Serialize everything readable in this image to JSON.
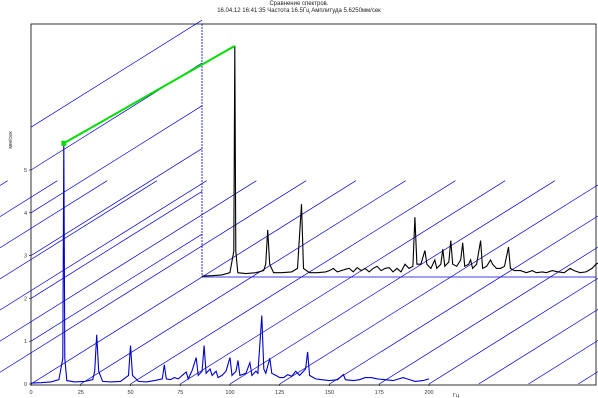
{
  "window": {
    "title_line1": "Сравнение спектров.",
    "title_line2": "16.04.12 16:41:35 Частота 16.5Гц Амплитуда 5.6250мм/сек"
  },
  "chart_data": {
    "type": "line",
    "title": "Сравнение спектров.",
    "subtitle": "16.04.12 16:41:35 Частота 16.5Гц Амплитуда 5.6250мм/сек",
    "xlabel": "Гц",
    "ylabel": "мм/сек",
    "x_ticks": [
      "0",
      "25",
      "50",
      "75",
      "100",
      "125",
      "150",
      "175",
      "200"
    ],
    "y_ticks": [
      "0",
      "1",
      "2",
      "3",
      "4",
      "5"
    ],
    "xlim": [
      0,
      200
    ],
    "ylim": [
      0,
      5.6
    ],
    "waterfall": true,
    "grid": true,
    "marker": {
      "x": 16.5,
      "y": 5.625,
      "color": "#00dd00"
    },
    "series": [
      {
        "color": "#0000cc",
        "points": [
          [
            0,
            0.02
          ],
          [
            5,
            0.03
          ],
          [
            10,
            0.05
          ],
          [
            14,
            0.1
          ],
          [
            16,
            0.6
          ],
          [
            16.5,
            5.625
          ],
          [
            17,
            0.6
          ],
          [
            18,
            0.08
          ],
          [
            22,
            0.05
          ],
          [
            27,
            0.06
          ],
          [
            31,
            0.1
          ],
          [
            32,
            0.3
          ],
          [
            33,
            1.15
          ],
          [
            34,
            0.3
          ],
          [
            36,
            0.06
          ],
          [
            40,
            0.05
          ],
          [
            45,
            0.06
          ],
          [
            49,
            0.2
          ],
          [
            50,
            0.9
          ],
          [
            51,
            0.2
          ],
          [
            54,
            0.06
          ],
          [
            58,
            0.05
          ],
          [
            62,
            0.08
          ],
          [
            66,
            0.12
          ],
          [
            67,
            0.45
          ],
          [
            68,
            0.12
          ],
          [
            70,
            0.1
          ],
          [
            72,
            0.15
          ],
          [
            74,
            0.12
          ],
          [
            76,
            0.2
          ],
          [
            78,
            0.28
          ],
          [
            79,
            0.12
          ],
          [
            81,
            0.32
          ],
          [
            83,
            0.62
          ],
          [
            84,
            0.2
          ],
          [
            86,
            0.3
          ],
          [
            87,
            0.9
          ],
          [
            88,
            0.25
          ],
          [
            90,
            0.35
          ],
          [
            91,
            0.2
          ],
          [
            93,
            0.3
          ],
          [
            94,
            0.15
          ],
          [
            96,
            0.2
          ],
          [
            98,
            0.3
          ],
          [
            100,
            0.62
          ],
          [
            101,
            0.2
          ],
          [
            103,
            0.3
          ],
          [
            104,
            0.55
          ],
          [
            105,
            0.2
          ],
          [
            108,
            0.25
          ],
          [
            110,
            0.5
          ],
          [
            111,
            0.2
          ],
          [
            113,
            0.3
          ],
          [
            114,
            0.25
          ],
          [
            116,
            1.6
          ],
          [
            117,
            0.35
          ],
          [
            118,
            0.25
          ],
          [
            120,
            0.6
          ],
          [
            121,
            0.25
          ],
          [
            123,
            0.2
          ],
          [
            125,
            0.15
          ],
          [
            127,
            0.15
          ],
          [
            129,
            0.22
          ],
          [
            131,
            0.18
          ],
          [
            133,
            0.3
          ],
          [
            135,
            0.2
          ],
          [
            138,
            0.35
          ],
          [
            139,
            0.75
          ],
          [
            140,
            0.2
          ],
          [
            143,
            0.12
          ],
          [
            146,
            0.1
          ],
          [
            150,
            0.08
          ],
          [
            154,
            0.1
          ],
          [
            157,
            0.22
          ],
          [
            158,
            0.1
          ],
          [
            162,
            0.08
          ],
          [
            165,
            0.1
          ],
          [
            168,
            0.15
          ],
          [
            171,
            0.15
          ],
          [
            174,
            0.12
          ],
          [
            178,
            0.1
          ],
          [
            182,
            0.08
          ],
          [
            187,
            0.15
          ],
          [
            189,
            0.12
          ],
          [
            193,
            0.06
          ],
          [
            197,
            0.08
          ],
          [
            200,
            0.12
          ]
        ]
      },
      {
        "color": "#000000",
        "points": [
          [
            0,
            0.02
          ],
          [
            5,
            0.03
          ],
          [
            10,
            0.05
          ],
          [
            14,
            0.1
          ],
          [
            16,
            0.6
          ],
          [
            16.5,
            5.4
          ],
          [
            17,
            0.6
          ],
          [
            18,
            0.1
          ],
          [
            22,
            0.08
          ],
          [
            27,
            0.1
          ],
          [
            31,
            0.15
          ],
          [
            32,
            0.3
          ],
          [
            33,
            1.1
          ],
          [
            34,
            0.3
          ],
          [
            36,
            0.1
          ],
          [
            40,
            0.1
          ],
          [
            45,
            0.12
          ],
          [
            48,
            0.2
          ],
          [
            50,
            1.7
          ],
          [
            51,
            0.2
          ],
          [
            54,
            0.1
          ],
          [
            58,
            0.1
          ],
          [
            62,
            0.12
          ],
          [
            64,
            0.15
          ],
          [
            66,
            0.2
          ],
          [
            68,
            0.12
          ],
          [
            70,
            0.15
          ],
          [
            72,
            0.18
          ],
          [
            74,
            0.2
          ],
          [
            76,
            0.12
          ],
          [
            78,
            0.22
          ],
          [
            80,
            0.15
          ],
          [
            82,
            0.2
          ],
          [
            84,
            0.12
          ],
          [
            86,
            0.2
          ],
          [
            88,
            0.25
          ],
          [
            90,
            0.15
          ],
          [
            92,
            0.2
          ],
          [
            94,
            0.22
          ],
          [
            96,
            0.12
          ],
          [
            98,
            0.2
          ],
          [
            100,
            0.12
          ],
          [
            102,
            0.3
          ],
          [
            104,
            0.2
          ],
          [
            106,
            0.25
          ],
          [
            107,
            1.4
          ],
          [
            108,
            0.3
          ],
          [
            110,
            0.3
          ],
          [
            112,
            0.62
          ],
          [
            113,
            0.3
          ],
          [
            115,
            0.2
          ],
          [
            117,
            0.4
          ],
          [
            118,
            0.2
          ],
          [
            120,
            0.3
          ],
          [
            121,
            0.65
          ],
          [
            122,
            0.25
          ],
          [
            124,
            0.35
          ],
          [
            125,
            0.85
          ],
          [
            126,
            0.3
          ],
          [
            128,
            0.25
          ],
          [
            130,
            0.4
          ],
          [
            131,
            0.8
          ],
          [
            132,
            0.25
          ],
          [
            134,
            0.3
          ],
          [
            135,
            0.4
          ],
          [
            136,
            0.2
          ],
          [
            138,
            0.3
          ],
          [
            140,
            0.85
          ],
          [
            141,
            0.2
          ],
          [
            143,
            0.25
          ],
          [
            145,
            0.4
          ],
          [
            146,
            0.3
          ],
          [
            148,
            0.2
          ],
          [
            150,
            0.2
          ],
          [
            152,
            0.25
          ],
          [
            154,
            0.7
          ],
          [
            155,
            0.2
          ],
          [
            157,
            0.15
          ],
          [
            160,
            0.15
          ],
          [
            163,
            0.1
          ],
          [
            166,
            0.15
          ],
          [
            168,
            0.1
          ],
          [
            171,
            0.12
          ],
          [
            173,
            0.1
          ],
          [
            176,
            0.15
          ],
          [
            179,
            0.12
          ],
          [
            182,
            0.1
          ],
          [
            185,
            0.2
          ],
          [
            187,
            0.15
          ],
          [
            190,
            0.1
          ],
          [
            193,
            0.12
          ],
          [
            196,
            0.2
          ],
          [
            198,
            0.3
          ],
          [
            200,
            0.35
          ]
        ]
      }
    ]
  }
}
